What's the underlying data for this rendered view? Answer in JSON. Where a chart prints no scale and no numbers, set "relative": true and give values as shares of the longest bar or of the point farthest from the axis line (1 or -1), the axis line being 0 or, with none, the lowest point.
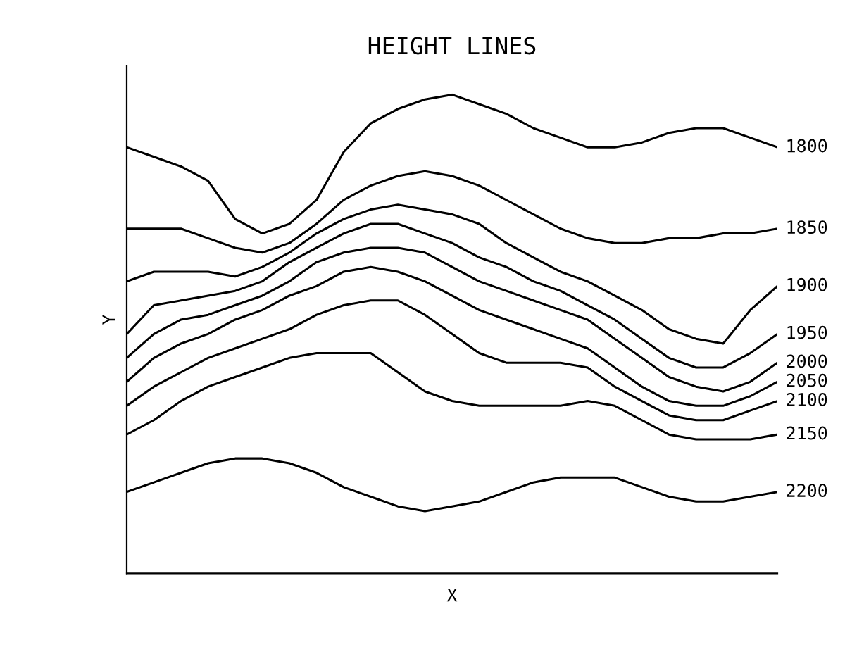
{
  "chart_data": {
    "type": "line",
    "title": "HEIGHT LINES",
    "xlabel": "X",
    "ylabel": "Y",
    "relative": true,
    "legend": false,
    "grid": false,
    "marker": "none",
    "line_style": "solid",
    "categories": [
      null,
      null,
      null,
      null,
      null,
      null,
      null,
      null,
      null,
      null,
      null,
      null,
      null,
      null,
      null,
      null,
      null,
      null,
      null,
      null,
      null,
      null,
      null,
      null,
      null
    ],
    "series": [
      {
        "name": "1800",
        "color": "#000000",
        "values": [
          0.89,
          0.87,
          0.85,
          0.82,
          0.74,
          0.71,
          0.73,
          0.78,
          0.88,
          0.94,
          0.97,
          0.99,
          1.0,
          0.98,
          0.96,
          0.93,
          0.91,
          0.89,
          0.89,
          0.9,
          0.92,
          0.93,
          0.93,
          0.91,
          0.89
        ]
      },
      {
        "name": "1850",
        "color": "#000000",
        "values": [
          0.72,
          0.72,
          0.72,
          0.7,
          0.68,
          0.67,
          0.69,
          0.73,
          0.78,
          0.81,
          0.83,
          0.84,
          0.83,
          0.81,
          0.78,
          0.75,
          0.72,
          0.7,
          0.69,
          0.69,
          0.7,
          0.7,
          0.71,
          0.71,
          0.72
        ]
      },
      {
        "name": "1900",
        "color": "#000000",
        "values": [
          0.61,
          0.63,
          0.63,
          0.63,
          0.62,
          0.64,
          0.67,
          0.71,
          0.74,
          0.76,
          0.77,
          0.76,
          0.75,
          0.73,
          0.69,
          0.66,
          0.63,
          0.61,
          0.58,
          0.55,
          0.51,
          0.49,
          0.48,
          0.55,
          0.6
        ]
      },
      {
        "name": "1950",
        "color": "#000000",
        "values": [
          0.5,
          0.56,
          0.57,
          0.58,
          0.59,
          0.61,
          0.65,
          0.68,
          0.71,
          0.73,
          0.73,
          0.71,
          0.69,
          0.66,
          0.64,
          0.61,
          0.59,
          0.56,
          0.53,
          0.49,
          0.45,
          0.43,
          0.43,
          0.46,
          0.5
        ]
      },
      {
        "name": "2000",
        "color": "#000000",
        "values": [
          0.45,
          0.5,
          0.53,
          0.54,
          0.56,
          0.58,
          0.61,
          0.65,
          0.67,
          0.68,
          0.68,
          0.67,
          0.64,
          0.61,
          0.59,
          0.57,
          0.55,
          0.53,
          0.49,
          0.45,
          0.41,
          0.39,
          0.38,
          0.4,
          0.44
        ]
      },
      {
        "name": "2050",
        "color": "#000000",
        "values": [
          0.4,
          0.45,
          0.48,
          0.5,
          0.53,
          0.55,
          0.58,
          0.6,
          0.63,
          0.64,
          0.63,
          0.61,
          0.58,
          0.55,
          0.53,
          0.51,
          0.49,
          0.47,
          0.43,
          0.39,
          0.36,
          0.35,
          0.35,
          0.37,
          0.4
        ]
      },
      {
        "name": "2100",
        "color": "#000000",
        "values": [
          0.35,
          0.39,
          0.42,
          0.45,
          0.47,
          0.49,
          0.51,
          0.54,
          0.56,
          0.57,
          0.57,
          0.54,
          0.5,
          0.46,
          0.44,
          0.44,
          0.44,
          0.43,
          0.39,
          0.36,
          0.33,
          0.32,
          0.32,
          0.34,
          0.36
        ]
      },
      {
        "name": "2150",
        "color": "#000000",
        "values": [
          0.29,
          0.32,
          0.36,
          0.39,
          0.41,
          0.43,
          0.45,
          0.46,
          0.46,
          0.46,
          0.42,
          0.38,
          0.36,
          0.35,
          0.35,
          0.35,
          0.35,
          0.36,
          0.35,
          0.32,
          0.29,
          0.28,
          0.28,
          0.28,
          0.29
        ]
      },
      {
        "name": "2200",
        "color": "#000000",
        "values": [
          0.17,
          0.19,
          0.21,
          0.23,
          0.24,
          0.24,
          0.23,
          0.21,
          0.18,
          0.16,
          0.14,
          0.13,
          0.14,
          0.15,
          0.17,
          0.19,
          0.2,
          0.2,
          0.2,
          0.18,
          0.16,
          0.15,
          0.15,
          0.16,
          0.17
        ]
      }
    ]
  }
}
